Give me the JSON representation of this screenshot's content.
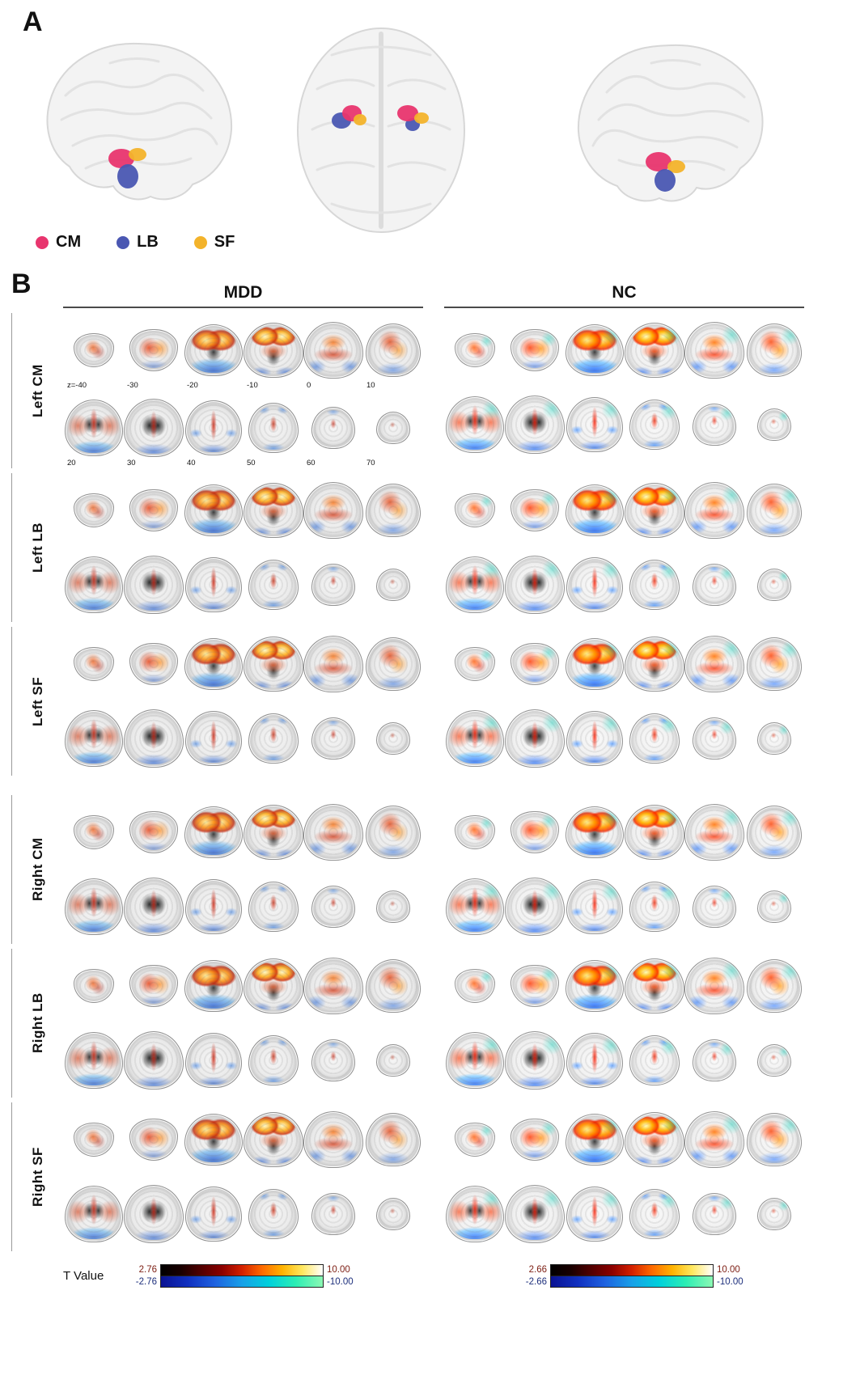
{
  "panel_a": {
    "label": "A",
    "legend": [
      {
        "label": "CM",
        "color": "#e8356e"
      },
      {
        "label": "LB",
        "color": "#4a57b2"
      },
      {
        "label": "SF",
        "color": "#f3b32b"
      }
    ]
  },
  "panel_b": {
    "label": "B",
    "column_headers": [
      "MDD",
      "NC"
    ],
    "rows": [
      "Left CM",
      "Left LB",
      "Left SF",
      "Right CM",
      "Right LB",
      "Right SF"
    ],
    "slice_labels_row1": [
      "z=-40",
      "-30",
      "-20",
      "-10",
      "0",
      "10"
    ],
    "slice_labels_row2": [
      "20",
      "30",
      "40",
      "50",
      "60",
      "70"
    ],
    "colorbars": {
      "title": "T Value",
      "mdd": {
        "pos_min": "2.76",
        "pos_max": "10.00",
        "neg_min": "-2.76",
        "neg_max": "-10.00"
      },
      "nc": {
        "pos_min": "2.66",
        "pos_max": "10.00",
        "neg_min": "-2.66",
        "neg_max": "-10.00"
      }
    },
    "colors": {
      "hot_scale": [
        "#000000",
        "#1a0000",
        "#530000",
        "#8b0000",
        "#d42000",
        "#ff6a00",
        "#ffb300",
        "#ffe860",
        "#ffffff"
      ],
      "cool_scale": [
        "#0a1292",
        "#1030c0",
        "#1e62e0",
        "#18a0e8",
        "#00d0dc",
        "#2ceeb4",
        "#8cf8b4"
      ]
    }
  }
}
